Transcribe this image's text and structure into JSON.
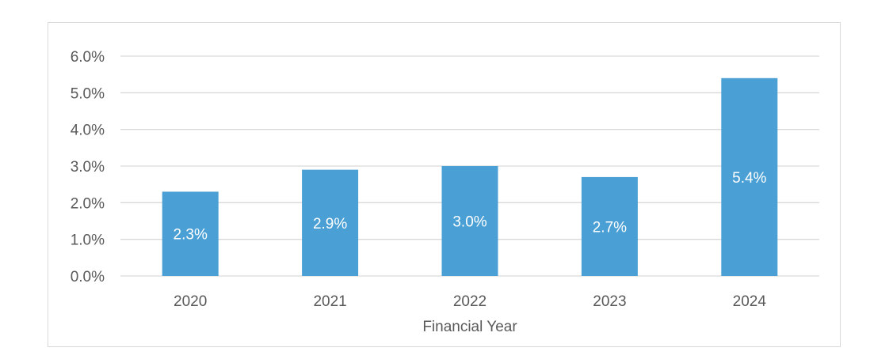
{
  "chart_data": {
    "type": "bar",
    "categories": [
      "2020",
      "2021",
      "2022",
      "2023",
      "2024"
    ],
    "values": [
      2.3,
      2.9,
      3.0,
      2.7,
      5.4
    ],
    "value_labels": [
      "2.3%",
      "2.9%",
      "3.0%",
      "2.7%",
      "5.4%"
    ],
    "xlabel": "Financial Year",
    "ylabel": "",
    "ylim": [
      0,
      6
    ],
    "yticks": [
      0,
      1,
      2,
      3,
      4,
      5,
      6
    ],
    "ytick_labels": [
      "0.0%",
      "1.0%",
      "2.0%",
      "3.0%",
      "4.0%",
      "5.0%",
      "6.0%"
    ],
    "grid": true,
    "legend": "none",
    "colors": {
      "bar": "#4a9fd4",
      "grid": "#d9d9d9",
      "text": "#595959",
      "data_label": "#ffffff"
    }
  }
}
